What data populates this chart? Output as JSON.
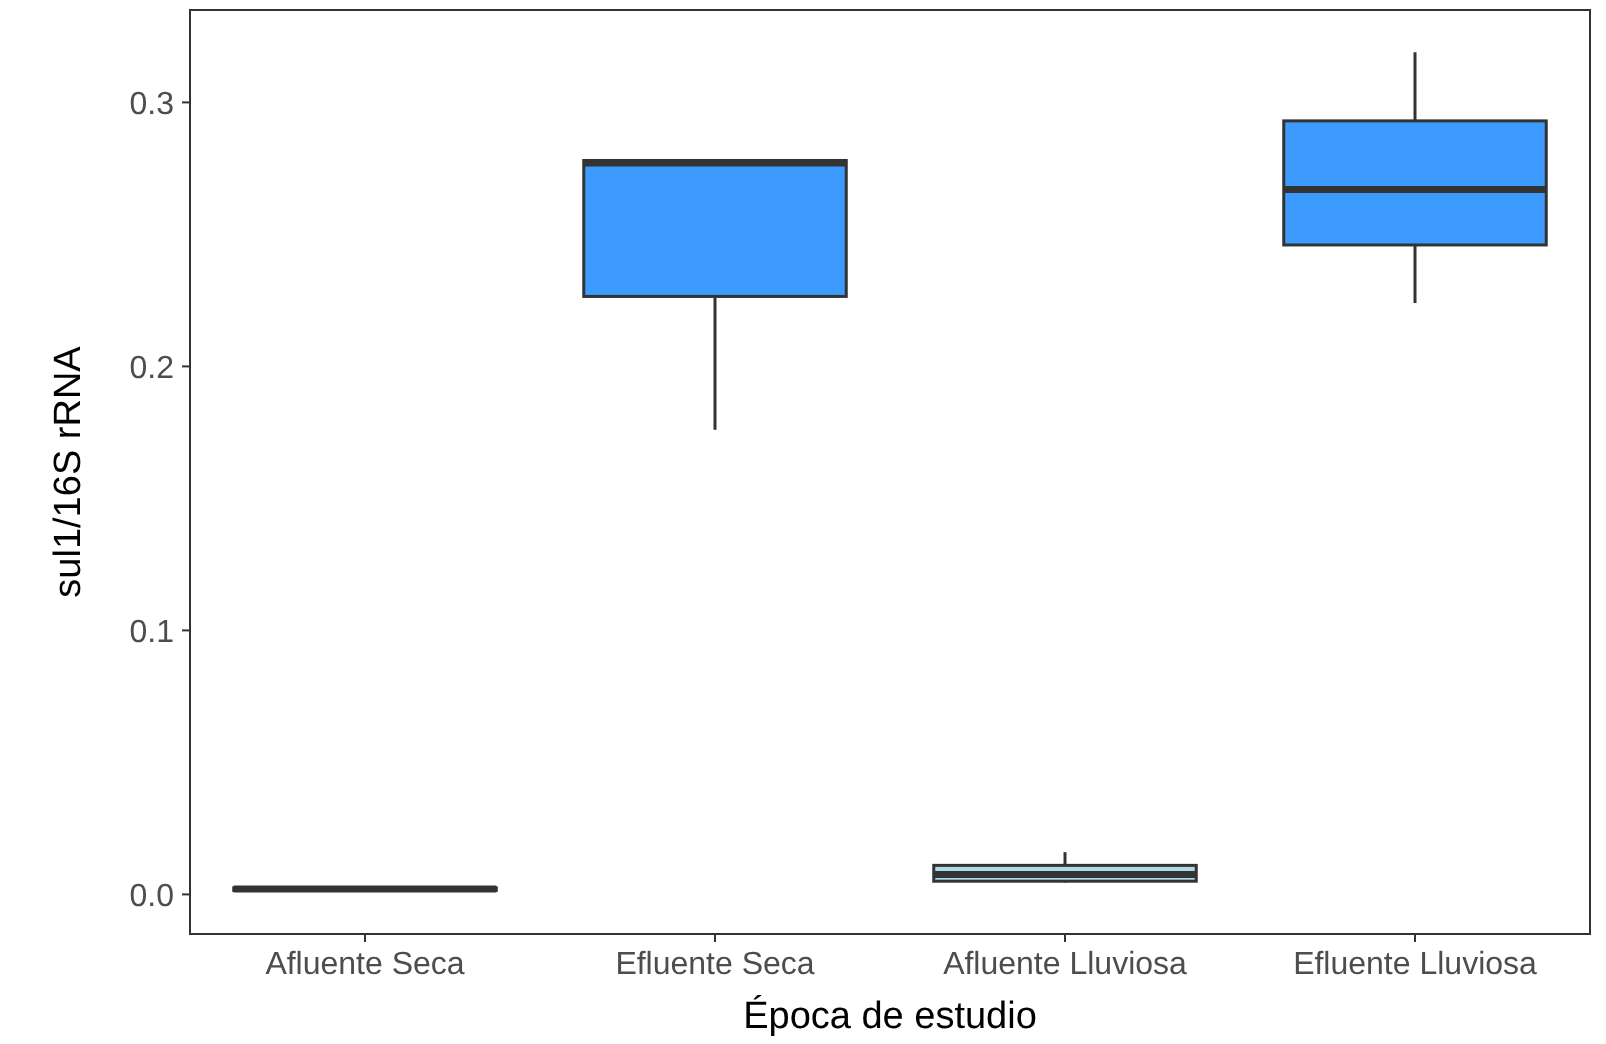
{
  "chart_data": {
    "type": "box",
    "xlabel": "Época de estudio",
    "ylabel": "sul1/16S rRNA",
    "categories": [
      "Afluente Seca",
      "Efluente Seca",
      "Afluente Lluviosa",
      "Efluente Lluviosa"
    ],
    "colors": [
      "#3d9bff",
      "#3d9bff",
      "#add8e6",
      "#3d9bff"
    ],
    "boxes": [
      {
        "low": 0.001,
        "q1": 0.0015,
        "median": 0.002,
        "q3": 0.0025,
        "high": 0.003
      },
      {
        "low": 0.176,
        "q1": 0.2265,
        "median": 0.277,
        "q3": 0.278,
        "high": 0.278
      },
      {
        "low": 0.0045,
        "q1": 0.005,
        "median": 0.0075,
        "q3": 0.011,
        "high": 0.016
      },
      {
        "low": 0.224,
        "q1": 0.246,
        "median": 0.267,
        "q3": 0.293,
        "high": 0.319
      }
    ],
    "ylim": [
      -0.015,
      0.335
    ],
    "yticks": [
      {
        "value": 0,
        "label": "0.0"
      },
      0.1,
      0.2,
      0.3
    ],
    "grid": false
  }
}
